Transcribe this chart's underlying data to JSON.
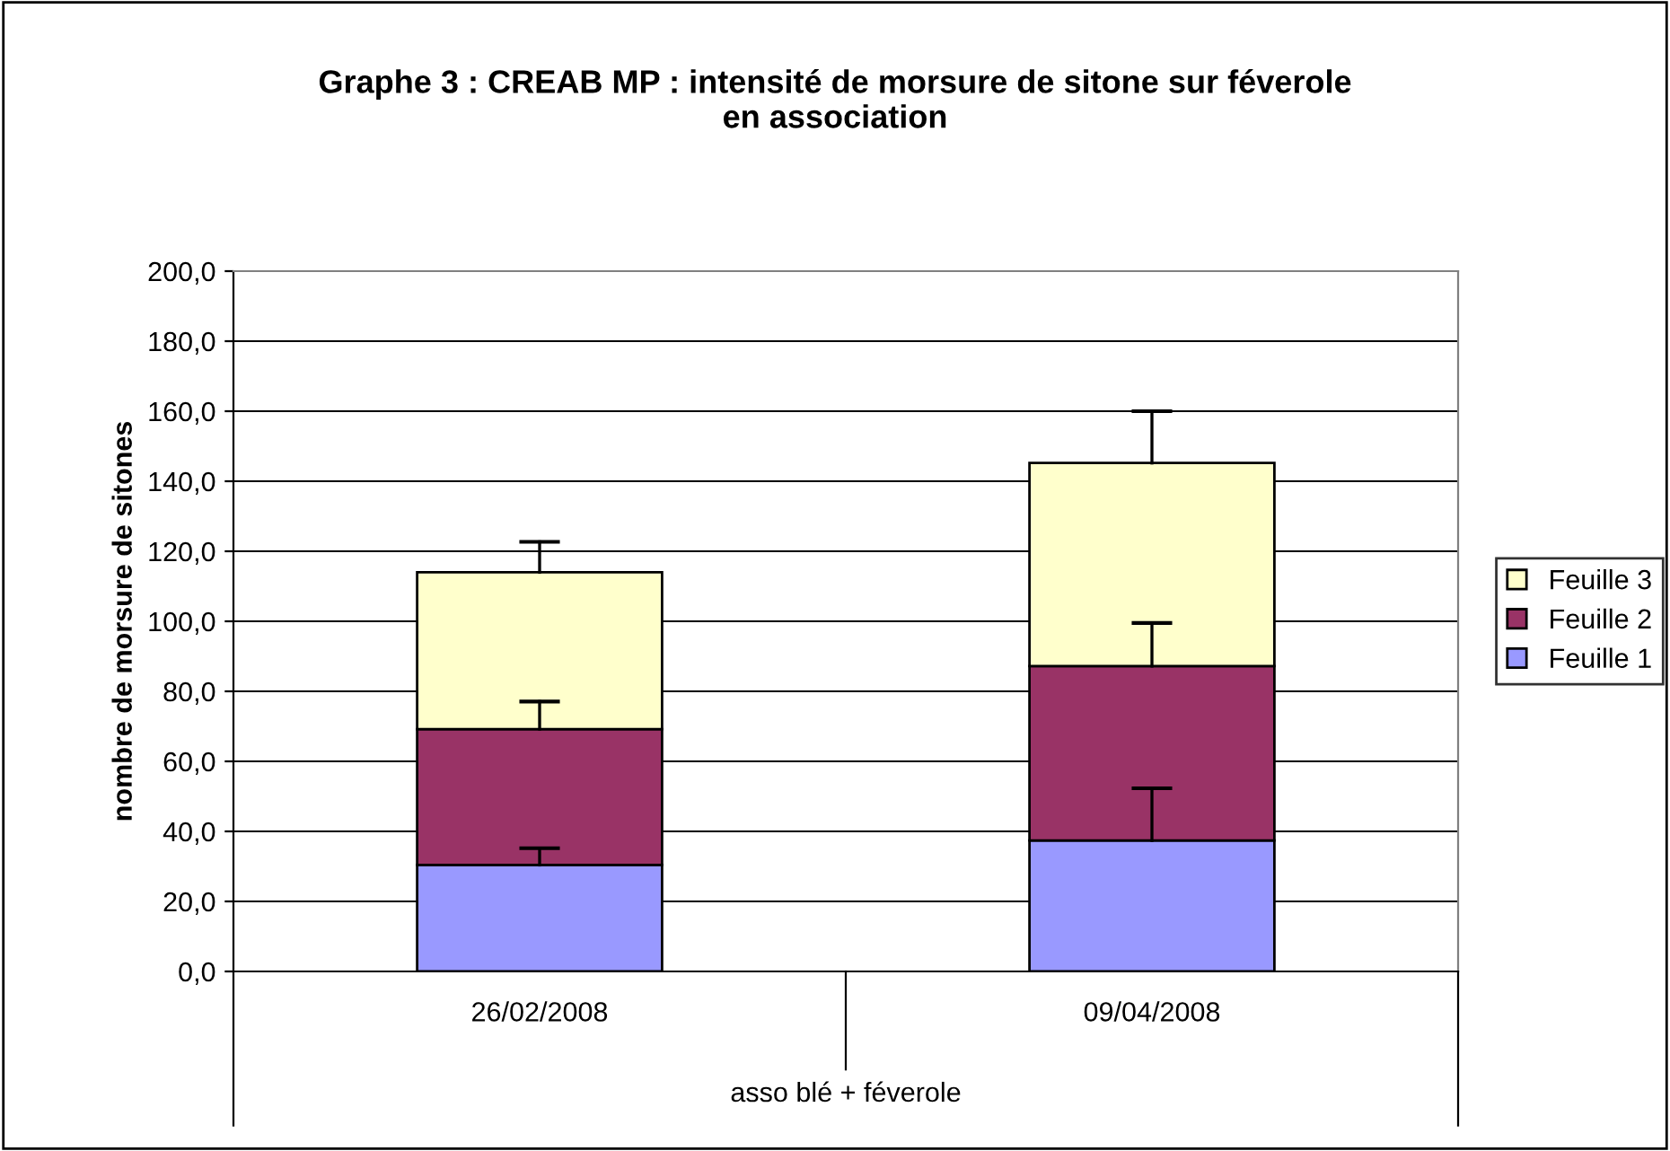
{
  "chart_data": {
    "type": "bar",
    "title": "Graphe 3 : CREAB MP : intensité de morsure de sitone sur féverole\nen association",
    "ylabel": "nombre de morsure de sitones",
    "xlabel": "asso blé + féverole",
    "categories": [
      "26/02/2008",
      "09/04/2008"
    ],
    "stacked": true,
    "series": [
      {
        "name": "Feuille 1",
        "color": "#9999ff",
        "values": [
          30.4,
          37.4
        ],
        "errors": [
          [
            30.4,
            35.2
          ],
          [
            37.4,
            52.3
          ]
        ]
      },
      {
        "name": "Feuille 2",
        "color": "#993366",
        "values": [
          38.8,
          49.8
        ],
        "errors": [
          [
            69.2,
            77.1
          ],
          [
            87.2,
            99.5
          ]
        ]
      },
      {
        "name": "Feuille 3",
        "color": "#ffffcc",
        "values": [
          44.8,
          58.0
        ],
        "errors": [
          [
            114.0,
            122.7
          ],
          [
            145.2,
            160.0
          ]
        ]
      }
    ],
    "ylim": [
      0,
      200
    ],
    "yticks": [
      {
        "value": 0,
        "label": "0,0"
      },
      {
        "value": 20,
        "label": "20,0"
      },
      {
        "value": 40,
        "label": "40,0"
      },
      {
        "value": 60,
        "label": "60,0"
      },
      {
        "value": 80,
        "label": "80,0"
      },
      {
        "value": 100,
        "label": "100,0"
      },
      {
        "value": 120,
        "label": "120,0"
      },
      {
        "value": 140,
        "label": "140,0"
      },
      {
        "value": 160,
        "label": "160,0"
      },
      {
        "value": 180,
        "label": "180,0"
      },
      {
        "value": 200,
        "label": "200,0"
      }
    ],
    "grid": "y",
    "legend": "right"
  }
}
